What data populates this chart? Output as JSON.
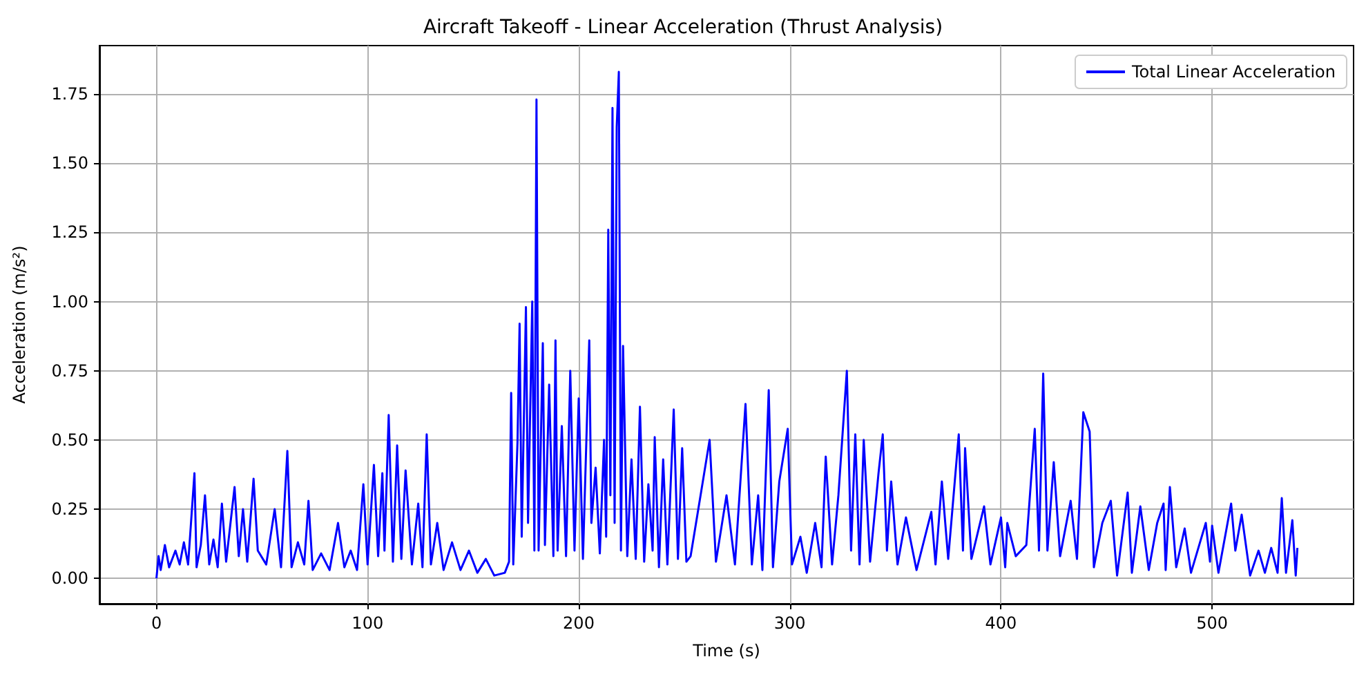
{
  "chart_data": {
    "type": "line",
    "title": "Aircraft Takeoff - Linear Acceleration (Thrust Analysis)",
    "xlabel": "Time (s)",
    "ylabel": "Acceleration (m/s²)",
    "xlim": [
      -27,
      567
    ],
    "xticks": [
      0,
      100,
      200,
      300,
      400,
      500
    ],
    "ylim": [
      -0.092,
      1.925
    ],
    "yticks": [
      {
        "value": 0,
        "label": "0.00"
      },
      0.25,
      {
        "value": 0.5,
        "label": "0.50"
      },
      0.75,
      {
        "value": 1,
        "label": "1.00"
      },
      1.25,
      {
        "value": 1.5,
        "label": "1.50"
      },
      1.75
    ],
    "grid": true,
    "legend": "top right",
    "marker": "none",
    "line_style": "solid",
    "series": [
      {
        "name": "Total Linear Acceleration",
        "color": "#0000ff",
        "x": [
          0,
          1,
          2,
          4,
          6,
          9,
          11,
          13,
          15,
          18,
          19,
          21,
          23,
          25,
          27,
          29,
          31,
          33,
          37,
          39,
          41,
          43,
          46,
          48,
          52,
          56,
          59,
          62,
          64,
          67,
          70,
          72,
          74,
          78,
          82,
          86,
          89,
          92,
          95,
          98,
          100,
          103,
          105,
          107,
          108,
          110,
          112,
          114,
          116,
          118,
          121,
          124,
          126,
          128,
          130,
          133,
          136,
          140,
          144,
          148,
          152,
          156,
          160,
          165,
          167,
          168,
          169,
          171,
          172,
          173,
          175,
          176,
          178,
          179,
          180,
          181,
          183,
          184,
          186,
          188,
          189,
          190,
          192,
          194,
          196,
          198,
          200,
          202,
          205,
          206,
          208,
          210,
          212,
          213,
          214,
          215,
          216,
          217,
          218,
          219,
          220,
          221,
          223,
          225,
          227,
          229,
          231,
          233,
          235,
          236,
          238,
          240,
          242,
          245,
          247,
          249,
          251,
          253,
          262,
          265,
          270,
          274,
          279,
          282,
          285,
          287,
          290,
          292,
          295,
          299,
          301,
          305,
          308,
          312,
          315,
          317,
          320,
          323,
          327,
          329,
          331,
          333,
          335,
          338,
          342,
          344,
          346,
          348,
          351,
          355,
          360,
          367,
          369,
          372,
          375,
          380,
          382,
          383,
          386,
          392,
          395,
          400,
          402,
          403,
          407,
          412,
          416,
          418,
          420,
          422,
          425,
          428,
          433,
          436,
          439,
          442,
          444,
          448,
          452,
          455,
          460,
          462,
          466,
          470,
          474,
          477,
          478,
          480,
          483,
          487,
          490,
          497,
          499,
          500,
          503,
          509,
          511,
          514,
          518,
          522,
          525,
          528,
          531,
          533,
          535,
          538,
          539.6,
          540.4
        ],
        "values": [
          0,
          0.08,
          0.03,
          0.12,
          0.04,
          0.1,
          0.05,
          0.13,
          0.05,
          0.38,
          0.04,
          0.12,
          0.3,
          0.05,
          0.14,
          0.04,
          0.27,
          0.06,
          0.33,
          0.08,
          0.25,
          0.06,
          0.36,
          0.1,
          0.05,
          0.25,
          0.04,
          0.46,
          0.04,
          0.13,
          0.05,
          0.28,
          0.03,
          0.09,
          0.03,
          0.2,
          0.04,
          0.1,
          0.03,
          0.34,
          0.05,
          0.41,
          0.08,
          0.38,
          0.1,
          0.59,
          0.06,
          0.48,
          0.07,
          0.39,
          0.05,
          0.27,
          0.04,
          0.52,
          0.05,
          0.2,
          0.03,
          0.13,
          0.03,
          0.1,
          0.02,
          0.07,
          0.01,
          0.02,
          0.06,
          0.67,
          0.05,
          0.49,
          0.92,
          0.15,
          0.98,
          0.2,
          1.0,
          0.1,
          1.73,
          0.1,
          0.85,
          0.12,
          0.7,
          0.08,
          0.86,
          0.1,
          0.55,
          0.08,
          0.75,
          0.1,
          0.65,
          0.07,
          0.86,
          0.2,
          0.4,
          0.09,
          0.5,
          0.15,
          1.26,
          0.3,
          1.7,
          0.2,
          1.63,
          1.83,
          0.1,
          0.84,
          0.08,
          0.43,
          0.07,
          0.62,
          0.06,
          0.34,
          0.1,
          0.51,
          0.04,
          0.43,
          0.05,
          0.61,
          0.07,
          0.47,
          0.06,
          0.08,
          0.5,
          0.06,
          0.3,
          0.05,
          0.63,
          0.05,
          0.3,
          0.03,
          0.68,
          0.04,
          0.35,
          0.54,
          0.05,
          0.15,
          0.02,
          0.2,
          0.04,
          0.44,
          0.05,
          0.3,
          0.75,
          0.1,
          0.52,
          0.05,
          0.5,
          0.06,
          0.38,
          0.52,
          0.1,
          0.35,
          0.05,
          0.22,
          0.03,
          0.24,
          0.05,
          0.35,
          0.07,
          0.52,
          0.1,
          0.47,
          0.07,
          0.26,
          0.05,
          0.22,
          0.04,
          0.2,
          0.08,
          0.12,
          0.54,
          0.1,
          0.74,
          0.1,
          0.42,
          0.08,
          0.28,
          0.07,
          0.6,
          0.53,
          0.04,
          0.2,
          0.28,
          0.01,
          0.31,
          0.02,
          0.26,
          0.03,
          0.2,
          0.27,
          0.03,
          0.33,
          0.04,
          0.18,
          0.02,
          0.2,
          0.06,
          0.19,
          0.02,
          0.27,
          0.1,
          0.23,
          0.01,
          0.1,
          0.02,
          0.11,
          0.02,
          0.29,
          0.02,
          0.21,
          0.01,
          0.11
        ]
      }
    ]
  }
}
